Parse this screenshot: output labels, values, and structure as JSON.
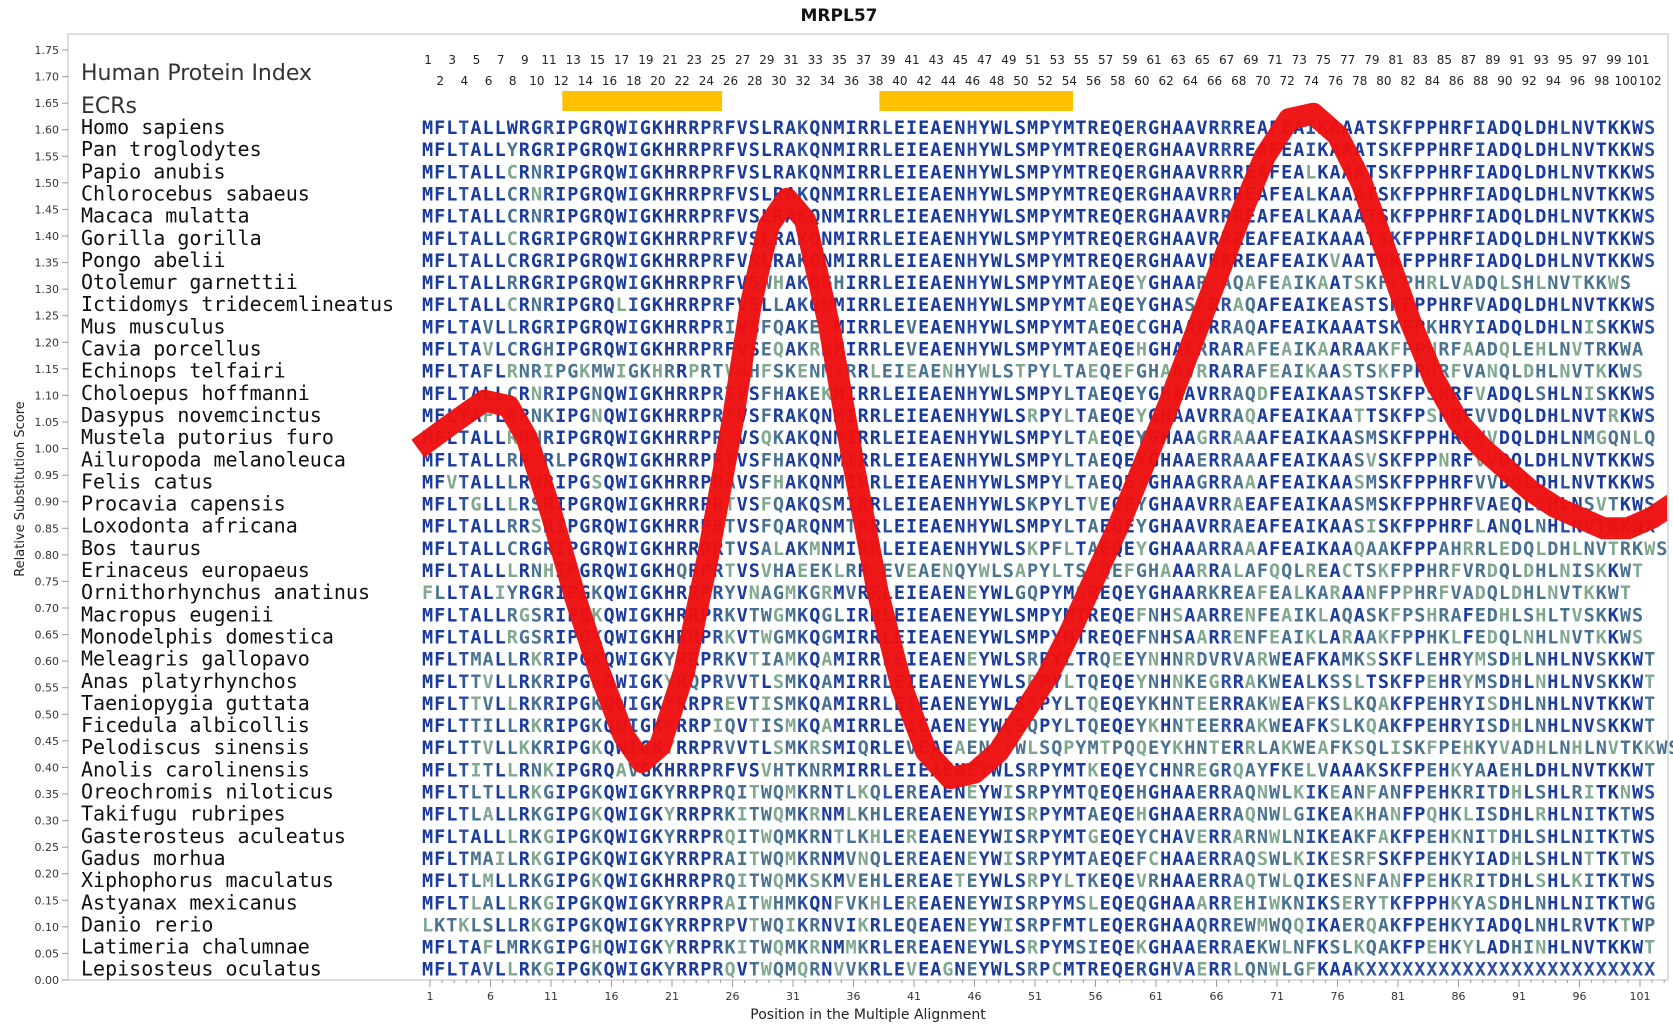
{
  "chart_data": {
    "type": "line",
    "title": "MRPL57",
    "xlabel": "Position in the Multiple Alignment",
    "ylabel": "Relative Substitution Score",
    "xlim": [
      1,
      103
    ],
    "ylim": [
      0,
      1.75
    ],
    "x_ticks": [
      1,
      6,
      11,
      16,
      21,
      26,
      31,
      36,
      41,
      46,
      51,
      56,
      61,
      66,
      71,
      76,
      81,
      86,
      91,
      96,
      101
    ],
    "y_ticks": [
      "0.00",
      "0.05",
      "0.10",
      "0.15",
      "0.20",
      "0.25",
      "0.30",
      "0.35",
      "0.40",
      "0.45",
      "0.50",
      "0.55",
      "0.60",
      "0.65",
      "0.70",
      "0.75",
      "0.80",
      "0.85",
      "0.90",
      "0.95",
      "1.00",
      "1.05",
      "1.10",
      "1.15",
      "1.20",
      "1.25",
      "1.30",
      "1.35",
      "1.40",
      "1.45",
      "1.50",
      "1.55",
      "1.60",
      "1.65",
      "1.70",
      "1.75"
    ],
    "legend_labels": {
      "index": "Human Protein Index",
      "ecrs": "ECRs"
    },
    "index_odd": [
      1,
      3,
      5,
      7,
      9,
      11,
      13,
      15,
      17,
      19,
      21,
      23,
      25,
      27,
      29,
      31,
      33,
      35,
      37,
      39,
      41,
      43,
      45,
      47,
      49,
      51,
      53,
      55,
      57,
      59,
      61,
      63,
      65,
      67,
      69,
      71,
      73,
      75,
      77,
      79,
      81,
      83,
      85,
      87,
      89,
      91,
      93,
      95,
      97,
      99,
      101
    ],
    "index_even": [
      2,
      4,
      6,
      8,
      10,
      12,
      14,
      16,
      18,
      20,
      22,
      24,
      26,
      28,
      30,
      32,
      34,
      36,
      38,
      40,
      42,
      44,
      46,
      48,
      50,
      52,
      54,
      56,
      58,
      60,
      62,
      64,
      66,
      68,
      70,
      72,
      74,
      76,
      78,
      80,
      82,
      84,
      86,
      88,
      90,
      92,
      94,
      96,
      98,
      100,
      102
    ],
    "ecr_regions": [
      [
        12.6,
        25.8
      ],
      [
        38.8,
        54.8
      ]
    ],
    "series": [
      {
        "color": "#ee1111",
        "x": [
          0,
          3,
          5.5,
          7.5,
          9,
          11,
          13,
          15,
          17,
          18.5,
          20,
          22,
          24,
          26,
          27.5,
          29,
          30.5,
          32,
          34,
          36,
          38,
          40,
          42,
          44,
          46,
          48,
          50,
          52,
          54,
          56,
          58,
          60,
          62,
          64,
          66,
          68,
          70,
          72,
          74,
          76,
          78,
          80,
          82,
          84,
          86,
          88,
          90,
          92,
          94,
          96,
          98,
          100,
          102,
          104
        ],
        "y": [
          1.0,
          1.05,
          1.09,
          1.08,
          1.02,
          0.88,
          0.72,
          0.58,
          0.46,
          0.41,
          0.44,
          0.58,
          0.8,
          1.05,
          1.27,
          1.42,
          1.47,
          1.43,
          1.23,
          0.97,
          0.73,
          0.55,
          0.43,
          0.38,
          0.39,
          0.43,
          0.5,
          0.57,
          0.66,
          0.76,
          0.86,
          0.97,
          1.08,
          1.2,
          1.32,
          1.44,
          1.55,
          1.62,
          1.63,
          1.59,
          1.5,
          1.37,
          1.24,
          1.13,
          1.05,
          1.0,
          0.96,
          0.92,
          0.89,
          0.87,
          0.85,
          0.85,
          0.87,
          0.9
        ]
      }
    ]
  },
  "alignment": [
    {
      "name": "Homo sapiens",
      "seq": "MFLTALLWRGRIPGRQWIGKHRRPRFVSLRAKQNMIRRLEIEAENHYWLSMPYMTREQERGHAAVRRREAFEAIKAAATSKFPPHRFIADQLDHLNVTKKWS"
    },
    {
      "name": "Pan troglodytes",
      "seq": "MFLTALLYRGRIPGRQWIGKHRRPRFVSLRAKQNMIRRLEIEAENHYWLSMPYMTREQERGHAAVRRREAFEAIKAAATSKFPPHRFIADQLDHLNVTKKWS"
    },
    {
      "name": "Papio anubis",
      "seq": "MFLTALLCRNRIPGRQWIGKHRRPRFVSLRAKQNMIRRLEIEAENHYWLSMPYMTREQERGHAAVRRREAFEALKAAATSKFPPHRFIADQLDHLNVTKKWS"
    },
    {
      "name": "Chlorocebus sabaeus",
      "seq": "MFLTALLCRNRIPGRQWIGKHRRPRFVSLRAKQNMIRRLEIEAENHYWLSMPYMTREQERGHAAVRRREAFEALKAAATSKFPPHRFIADQLDHLNVTKKWS"
    },
    {
      "name": "Macaca mulatta",
      "seq": "MFLTALLCRNRIPGRQWIGKHRRPRFVSLRAKQNMIRRLEIEAENHYWLSMPYMTREQERGHAAVRRREAFEALKAAATSKFPPHRFIADQLDHLNVTKKWS"
    },
    {
      "name": "Gorilla gorilla",
      "seq": "MFLTALLCRGRIPGRQWIGKHRRPRFVSLRAKQNMIRRLEIEAENHYWLSMPYMTREQERGHAAVRRREAFEAIKAAATSKFPPHRFIADQLDHLNVTKKWS"
    },
    {
      "name": "Pongo abelii",
      "seq": "MFLTALLCRGRIPGRQWIGKHRRPRFVSLRAKQNMIRRLEIEAENHYWLSMPYMTREQERGHAAVRRREAFEAIKVAATSKFPPHRFIADQLDHLNVTKKWS"
    },
    {
      "name": "Otolemur garnettii",
      "seq": "MFLTALLRRGRIPGRQWIGKHRRPRFVSWHAKQGHIRRLEIEAENHYWLSMPYMTAEQEYGHAARKAQAFEAIKAATSKFPPHRLVADQLSHLNVTKKWS"
    },
    {
      "name": "Ictidomys tridecemlineatus",
      "seq": "MFLTALLCRNRIPGRQLIGKHRRPRFVSLLAKQNMIRRLEIEAENHYWLSMPYMTAEQEYGHASARRAQAFEAIKEASTSKFPPHRFVADQLDHLNVTKKWS"
    },
    {
      "name": "Mus musculus",
      "seq": "MFLTAVLLRGRIPGRQWIGKHRRPRIVSFQAKESMIRRLEVEAENHYWLSMPYMTAEQECGHAAERRAQAFEAIKAAATSKFPKHRYIADQLDHLNISKKWS"
    },
    {
      "name": "Cavia porcellus",
      "seq": "MFLTAVLCRGHIPGRQWIGKHRRPRFVSEQAKRNMIRRLEVEAENHYWLSMPYMTAEQEHGHAERRARAFEAIKAARAAKFPPHRFAADQLEHLNVTRKWA"
    },
    {
      "name": "Echinops telfairi",
      "seq": "MFLTAFLRNRIPGKMWIGKHRRPRTVSHFSKENMIRRLEIEAENHYWLSTPYLTAEQEFGHAAVRRARAFEAIKAASTSKFPPHRFVANQLDHLNVTKKWS"
    },
    {
      "name": "Choloepus hoffmanni",
      "seq": "MFLTALLCRNRIPGNQWIGKHRRPRTVSFHAKEKMIRRLEIEAENHYWLSMPYLTAEQEYGHAAVRRAQDFEAIKAASTSKFPSHRFVADQLSHLNISKKWS"
    },
    {
      "name": "Dasypus novemcinctus",
      "seq": "MFLTAFLRRNKIPGNQWIGKHRRPRTVSFRAKQNMIRRLEIEAENHYWLSRPYLTAEQEYGHAAVRRAQAFEAIKAATTSKFPSHRFVVDQLDHLNVTRKWS"
    },
    {
      "name": "Mustela putorius furo",
      "seq": "MFLTALLRRNRIPGRQWIGKHRRPRTVSQKAKQNMIRRLEIEAENHYWLSMPYLTAEQEYGHAAGRRAAAFEAIKAASMSKFPPHRFVVDQLDHLNMGQNLQ"
    },
    {
      "name": "Ailuropoda melanoleuca",
      "seq": "MFLTALLRRNRLPGRQWIGKHRRPRTVSFHAKQNMIRRLEIEAENHYWLSMPYLTAEQEYGHAAERRAAAFEAIKAASVSKFPPNRFVVDQLDHLNVTKKWS"
    },
    {
      "name": "Felis catus",
      "seq": "MFVTALLLRNRIPGSQWIGKHRRPRAVSFHAKQNMIRRLEIEAENHYWLSMPYLTAEQEYGHAAGRRAAAFEAIKAASMSKFPPHRFVVDQLDHLNVTKKWS"
    },
    {
      "name": "Procavia capensis",
      "seq": "MFLTGLLLRSRIPGRQWIGKHRRPRTVSFQAKQSMIRRLEIEAENHYWLSKPYLTVEQEYGHAAVRRAEAFEAIKAASMSKFPPHRFVAEQLSHLNSVTKWS"
    },
    {
      "name": "Loxodonta africana",
      "seq": "MFLTALLRRSRIPGRQWIGKHRRPRTVSFQARQNMTRRLEIEAENHYWLSMPYLTAEQEYGHAAVRRAEAFEAIKAASISKFPPHRFLANQLNHLNVTKKWX"
    },
    {
      "name": "Bos taurus",
      "seq": "MFLTALLCRGRIPGRQWIGKHRRPRTVSALAKMNMIRRLEIEAENHYWLSKPFLTAEQEYGHAAARRAAAFEAIKAAQAAKFPPAHRRLEDQLDHLNVTRKWS"
    },
    {
      "name": "Erinaceus europaeus",
      "seq": "MFLTALLLRNHIPGRQWIGKHQRPRTVSVHAEEKLRRLEVEAENQYWLSAPYLTSEQEFGHAAARRALAFQQLREACTSKFPPHRFVRDQLDHLNISKKWT"
    },
    {
      "name": "Ornithorhynchus anatinus",
      "seq": "FLLTALIYRGRIPGKQWIGKHRRPRYVNAGMKGRMVRRLEIEAENEYWLGQPYMSREQEYGHAARKREAFEALKARAANFPPHRFVADQLDHLNVTKKWT"
    },
    {
      "name": "Macropus eugenii",
      "seq": "MFLTALLRGSRIPGKQWIGKHRRPRKVTWGMKQGLIRRLEIEAENEYWLSMPYMTREQEFNHSAARRENFEAIKLAQASKFPSHRAFEDHLSHLTVSKKWS"
    },
    {
      "name": "Monodelphis domestica",
      "seq": "MFLTALLRGSRIPGKQWIGKHRRPRKVTWGMKQGMIRRLEIEAENEYWLSMPYMTREQEFNHSAARRENFEAIKLARAAKFPPHKLFEDQLNHLNVTKKWS"
    },
    {
      "name": "Meleagris gallopavo",
      "seq": "MFLTMALLRKRIPGKQWIGKYRRPRKVTIAMKQAMIRRLEIEAENEYWLSRPYLTRQEEYNHNRDVRVARWEAFKAMKSSKFLEHRYMSDHLNHLNVSKKWT"
    },
    {
      "name": "Anas platyrhynchos",
      "seq": "MFLTTVLLRKRIPGKQWIGKYRQPRVVTLSMKQAMIRRLEIEAENEYWLSRPYLTQEQEYNHNKEGRRAKWEALKSSLTSKFPEHRYMSDHLNHLNVSKKWT"
    },
    {
      "name": "Taeniopygia guttata",
      "seq": "MFLTTVLLRKRIPGKQWIGKYRRPREVTISMKQAMIRRLEIEAENEYWLSRPYLTQEQEYKHNTEERRAKWEAFKSLKQAKFPEHRYISDHLNHLNVTKKWT"
    },
    {
      "name": "Ficedula albicollis",
      "seq": "MFLTTILLRKRIPGKQWIGKYRRPIQVTISMKQAMIRRLEIEAENEYWLSQPYLTQEQEYKHNTEERRAKWEAFKSLKQAKFPEHRYISDHLNHLNVSKKWT"
    },
    {
      "name": "Pelodiscus sinensis",
      "seq": "MFLTTVLLKKRIPGKQWIGKYRRPRVVTLSMKRSMIQRLEVEAEAENEYWLSQPYMTPQQEYKHNTERRLAKWEAFKSQLISKFPEHKYVADHLNHLNVTKKWS"
    },
    {
      "name": "Anolis carolinensis",
      "seq": "MFLTITLLRNKIPGRQAVGKHRRPRFVSVHTKNRMIRRLEIEAENEYWLSRPYMTKEQEYCHNREGRQAYFKELVAAAKSKFPEHKYAAEHLDHLNVTKKWT"
    },
    {
      "name": "Oreochromis niloticus",
      "seq": "MFLTLTLLRKGIPGKQWIGKYRRPRQITWQMKRNTLKQLEREAENEYWISRPYMTQEQEHGHAAERRAQNWLKIKEANFANFPEHKRITDHLSHLRITKNWS"
    },
    {
      "name": "Takifugu rubripes",
      "seq": "MFLTLALLRKGIPGKQWIGKYRRPRKITWQMKRNMLKHLEREAENEYWISRPYMTAEQEHGHAAERRAQNWLGIKEAKHANFPQHKLISDHLRHLNITKTWS"
    },
    {
      "name": "Gasterosteus aculeatus",
      "seq": "MFLTALLLRKGIPGKQWIGKYRRPRQITWQMKRNTLKHLEREAENEYWISRPYMTGEQEYCHAVERRARNWLNIKEAKFAKFPEHKNITDHLSHLNITKTWS"
    },
    {
      "name": "Gadus morhua",
      "seq": "MFLTMAILRKGIPGKQWIGKYRRPRAITWQMKRNMVNQLEREAENEYWISRPYMTAEQEFCHAAERRAQSWLKIKESRFSKFPEHKYIADHLSHLNTTKTWS"
    },
    {
      "name": "Xiphophorus maculatus",
      "seq": "MFLTLMLLRKGIPGKQWIGKHRRPRQITWQMKSKMVEHLEREAETEYWLSRPYLTKEQEVRHAAERRAQTWLQIKESNFANFPEHKRITDHLSHLKITKTWS"
    },
    {
      "name": "Astyanax mexicanus",
      "seq": "MFLTLALLRKGIPGKQWIGKYRRPRAITWHMKQNFVKHLEREAENEYWISRPYMSLEQEQGHAAARREHIWKNIKSERYTKFPPHKYASDHLNHLNITKTWG"
    },
    {
      "name": "Danio rerio",
      "seq": "LKTKLSLLRKGIPGKQWIGKYRRPRPVTWQIKRNVIKRLEQEAENEYWISRPFMTLEQERGHAAQRREWMWQQIKAERQAKFPEHKYIADQLNHLRVTKTWP"
    },
    {
      "name": "Latimeria chalumnae",
      "seq": "MFLTAFLMRKGIPGHQWIGKYRRPRKITWQMKRNMMKRLEREAENEYWLSRPYMSIEQEKGHAAERRAEKWLNFKSLKQAKFPEHKYLADHINHLNVTKKWT"
    },
    {
      "name": "Lepisosteus oculatus",
      "seq": "MFLTAVLLRKGIPGKQWIGKYRRPRQVTWQMQRNVVKRLEVEAGNEYWLSRPCMTREQERGHVAERRLQNWLGFKAAKXXXXXXXXXXXXXXXXXXXXXXXX"
    }
  ],
  "colors": {
    "strong": "#1a3a9c",
    "mid": "#2c4fa0",
    "weak": "#4a7390",
    "faint": "#80a890",
    "ecr": "#ffc000",
    "line": "#ee1111"
  }
}
